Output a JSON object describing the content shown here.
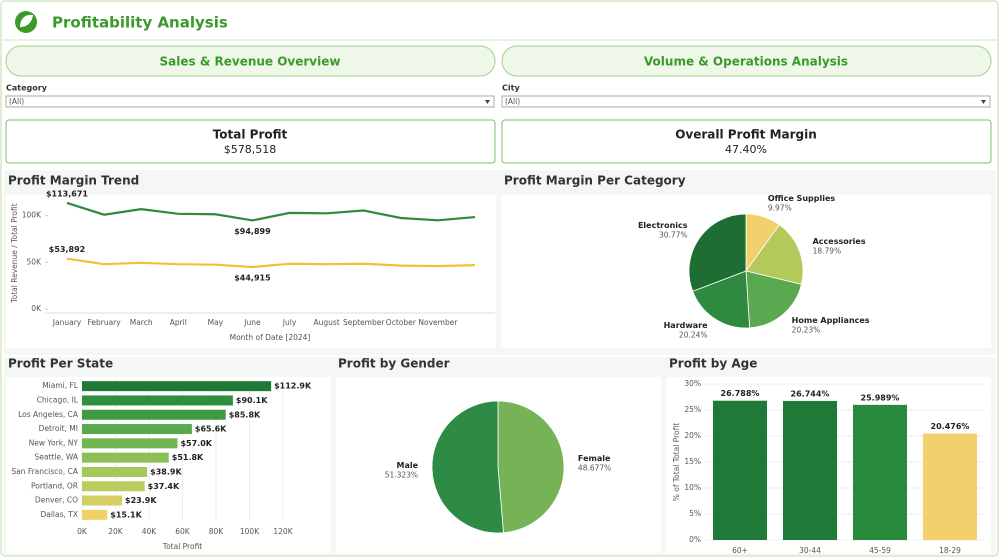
{
  "header": {
    "title": "Profitability Analysis"
  },
  "tabs": [
    "Sales & Revenue Overview",
    "Volume & Operations Analysis"
  ],
  "filters": [
    {
      "label": "Category",
      "value": "(All)"
    },
    {
      "label": "City",
      "value": "(All)"
    }
  ],
  "kpis": [
    {
      "label": "Total Profit",
      "value": "$578,518"
    },
    {
      "label": "Overall Profit Margin",
      "value": "47.40%"
    }
  ],
  "chart_data": [
    {
      "type": "line",
      "title": "Profit Margin Trend",
      "x_label": "Month of Date [2024]",
      "y_label": "Total Revenue / Total Profit",
      "categories": [
        "January",
        "February",
        "March",
        "April",
        "May",
        "June",
        "July",
        "August",
        "September",
        "October",
        "November",
        null
      ],
      "series": [
        {
          "color": "#2e8b3a",
          "values": [
            113671,
            101000,
            107000,
            102000,
            101500,
            94899,
            103000,
            102500,
            105500,
            97500,
            95000,
            98500
          ],
          "value_labels": [
            "$113,671",
            null,
            null,
            null,
            null,
            "$94,899",
            null,
            null,
            null,
            null,
            null,
            null
          ]
        },
        {
          "color": "#f4c033",
          "values": [
            53892,
            48000,
            49500,
            48000,
            47500,
            44915,
            48500,
            48000,
            48500,
            46500,
            46000,
            47000
          ],
          "value_labels": [
            "$53,892",
            null,
            null,
            null,
            null,
            "$44,915",
            null,
            null,
            null,
            null,
            null,
            null
          ]
        }
      ],
      "ylim": [
        0,
        120000
      ],
      "yticks": [
        {
          "value": 0,
          "label": "0K"
        },
        {
          "value": 50000,
          "label": "50K"
        },
        {
          "value": 100000,
          "label": "100K"
        }
      ]
    },
    {
      "type": "pie",
      "title": "Profit Margin Per Category",
      "categories": [
        "Office Supplies",
        "Accessories",
        "Home Appliances",
        "Hardware",
        "Electronics"
      ],
      "values": [
        9.97,
        18.79,
        20.23,
        20.24,
        30.77
      ],
      "value_labels": [
        "9.97%",
        "18.79%",
        "20.23%",
        "20.24%",
        "30.77%"
      ],
      "colors": [
        "#f2d06b",
        "#b3c95a",
        "#5aa84f",
        "#2f8a3f",
        "#1e6e34"
      ]
    },
    {
      "type": "hbar",
      "title": "Profit Per State",
      "x_label": "Total Profit",
      "categories": [
        "Miami, FL",
        "Chicago, IL",
        "Los Angeles, CA",
        "Detroit, MI",
        "New York, NY",
        "Seattle, WA",
        "San Francisco, CA",
        "Portland, OR",
        "Denver, CO",
        "Dallas, TX"
      ],
      "values": [
        112900,
        90100,
        85800,
        65600,
        57000,
        51800,
        38900,
        37400,
        23900,
        15100
      ],
      "value_labels": [
        "$112.9K",
        "$90.1K",
        "$85.8K",
        "$65.6K",
        "$57.0K",
        "$51.8K",
        "$38.9K",
        "$37.4K",
        "$23.9K",
        "$15.1K"
      ],
      "colors": [
        "#1f7a36",
        "#2f8f3e",
        "#3f9b41",
        "#5aa84b",
        "#72b450",
        "#8cbf55",
        "#a5c85a",
        "#b9cd5e",
        "#d4cf62",
        "#efd165"
      ],
      "xlim": [
        0,
        120000
      ],
      "xticks": [
        {
          "value": 0,
          "label": "0K"
        },
        {
          "value": 20000,
          "label": "20K"
        },
        {
          "value": 40000,
          "label": "40K"
        },
        {
          "value": 60000,
          "label": "60K"
        },
        {
          "value": 80000,
          "label": "80K"
        },
        {
          "value": 100000,
          "label": "100K"
        },
        {
          "value": 120000,
          "label": "120K"
        }
      ]
    },
    {
      "type": "pie",
      "title": "Profit by Gender",
      "categories": [
        "Female",
        "Male"
      ],
      "values": [
        48.677,
        51.323
      ],
      "value_labels": [
        "48.677%",
        "51.323%"
      ],
      "colors": [
        "#76b356",
        "#2e8b45"
      ]
    },
    {
      "type": "bar",
      "title": "Profit by Age",
      "y_label": "% of Total Total Profit",
      "categories": [
        "60+",
        "30-44",
        "45-59",
        "18-29"
      ],
      "values": [
        26.788,
        26.744,
        25.989,
        20.476
      ],
      "value_labels": [
        "26.788%",
        "26.744%",
        "25.989%",
        "20.476%"
      ],
      "colors": [
        "#1e7a36",
        "#1e7a36",
        "#2a8a3c",
        "#f2d06b"
      ],
      "ylim": [
        0,
        30
      ],
      "yticks": [
        {
          "value": 0,
          "label": "0%"
        },
        {
          "value": 5,
          "label": "5%"
        },
        {
          "value": 10,
          "label": "10%"
        },
        {
          "value": 15,
          "label": "15%"
        },
        {
          "value": 20,
          "label": "20%"
        },
        {
          "value": 25,
          "label": "25%"
        },
        {
          "value": 30,
          "label": "30%"
        }
      ]
    }
  ]
}
